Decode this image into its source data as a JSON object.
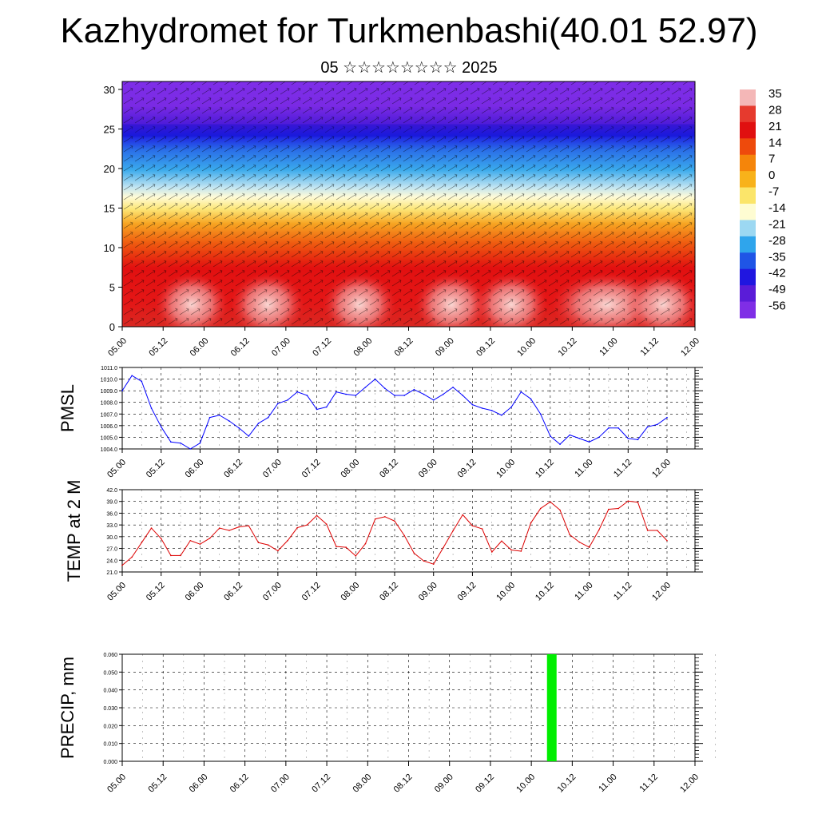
{
  "title": "Kazhydromet for Turkmenbashi(40.01 52.97)",
  "subtitle": "05 ☆☆☆☆☆☆☆☆ 2025",
  "chart_data": [
    {
      "type": "heatmap",
      "panel": "cross-section",
      "x_ticks": [
        "05.00",
        "05.12",
        "06.00",
        "06.12",
        "07.00",
        "07.12",
        "08.00",
        "08.12",
        "09.00",
        "09.12",
        "10.00",
        "10.12",
        "11.00",
        "11.12",
        "12.00"
      ],
      "y_ticks": [
        "0",
        "5",
        "10",
        "15",
        "20",
        "25",
        "30"
      ],
      "ylim": [
        0,
        31
      ],
      "colorbar_labels": [
        "35",
        "28",
        "21",
        "14",
        "7",
        "0",
        "-7",
        "-14",
        "-21",
        "-28",
        "-35",
        "-42",
        "-49",
        "-56"
      ],
      "colorbar_colors": [
        "#f4b7b7",
        "#e63a2e",
        "#e01010",
        "#ee4a0c",
        "#f5850a",
        "#f8b21a",
        "#fbe56a",
        "#fefcd2",
        "#9cd8f2",
        "#2fa5ec",
        "#1f55e6",
        "#2016e0",
        "#5a1cd8",
        "#7f2ee6"
      ]
    },
    {
      "type": "line",
      "ylabel": "PMSL",
      "y_ticks": [
        "1004.0",
        "1005.0",
        "1006.0",
        "1007.0",
        "1008.0",
        "1009.0",
        "1010.0",
        "1011.0"
      ],
      "ylim": [
        1004.0,
        1011.0
      ],
      "x_ticks": [
        "05.00",
        "05.12",
        "06.00",
        "06.12",
        "07.00",
        "07.12",
        "08.00",
        "08.12",
        "09.00",
        "09.12",
        "10.00",
        "10.12",
        "11.00",
        "11.12",
        "12.00"
      ],
      "color": "#0000ff",
      "series": [
        {
          "values": [
            1009.0,
            1010.3,
            1009.8,
            1007.5,
            1005.9,
            1004.6,
            1004.5,
            1004.0,
            1004.5,
            1006.7,
            1006.9,
            1006.4,
            1005.8,
            1005.1,
            1006.2,
            1006.7,
            1007.9,
            1008.2,
            1008.9,
            1008.6,
            1007.4,
            1007.6,
            1008.9,
            1008.7,
            1008.6,
            1009.3,
            1010.0,
            1009.2,
            1008.6,
            1008.6,
            1009.1,
            1008.7,
            1008.2,
            1008.7,
            1009.3,
            1008.6,
            1007.8,
            1007.5,
            1007.3,
            1006.9,
            1007.6,
            1008.9,
            1008.3,
            1007.0,
            1005.1,
            1004.4,
            1005.2,
            1004.9,
            1004.6,
            1005.0,
            1005.8,
            1005.8,
            1004.9,
            1004.8,
            1005.9,
            1006.1,
            1006.7
          ]
        }
      ]
    },
    {
      "type": "line",
      "ylabel": "TEMP at 2 M",
      "y_ticks": [
        "21.0",
        "24.0",
        "27.0",
        "30.0",
        "33.0",
        "36.0",
        "39.0",
        "42.0"
      ],
      "ylim": [
        21.0,
        42.0
      ],
      "x_ticks": [
        "05.00",
        "05.12",
        "06.00",
        "06.12",
        "07.00",
        "07.12",
        "08.00",
        "08.12",
        "09.00",
        "09.12",
        "10.00",
        "10.12",
        "11.00",
        "11.12",
        "12.00"
      ],
      "color": "#dd0000",
      "series": [
        {
          "values": [
            22.7,
            24.8,
            28.5,
            32.2,
            29.5,
            25.2,
            25.2,
            29.0,
            28.1,
            29.6,
            32.2,
            31.6,
            32.5,
            32.8,
            28.5,
            27.9,
            26.4,
            29.0,
            32.3,
            33.0,
            35.4,
            33.2,
            27.5,
            27.3,
            25.1,
            28.2,
            34.5,
            35.1,
            34.0,
            30.3,
            25.8,
            23.8,
            23.0,
            27.2,
            31.5,
            35.6,
            32.8,
            32.0,
            26.1,
            28.9,
            26.6,
            26.3,
            33.5,
            37.2,
            38.9,
            36.8,
            30.5,
            28.6,
            27.3,
            31.7,
            37.0,
            37.2,
            39.1,
            38.8,
            31.6,
            31.6,
            29.0
          ]
        }
      ]
    },
    {
      "type": "bar",
      "ylabel": "PRECIP, mm",
      "y_ticks": [
        "0.000",
        "0.010",
        "0.020",
        "0.030",
        "0.040",
        "0.050",
        "0.060"
      ],
      "ylim": [
        0.0,
        0.06
      ],
      "x_ticks": [
        "05.00",
        "05.12",
        "06.00",
        "06.12",
        "07.00",
        "07.12",
        "08.00",
        "08.12",
        "09.00",
        "09.12",
        "10.00",
        "10.12",
        "11.00",
        "11.12",
        "12.00"
      ],
      "color": "#00ee00",
      "bars": [
        {
          "x": "10.06",
          "value": 0.06
        }
      ]
    }
  ]
}
